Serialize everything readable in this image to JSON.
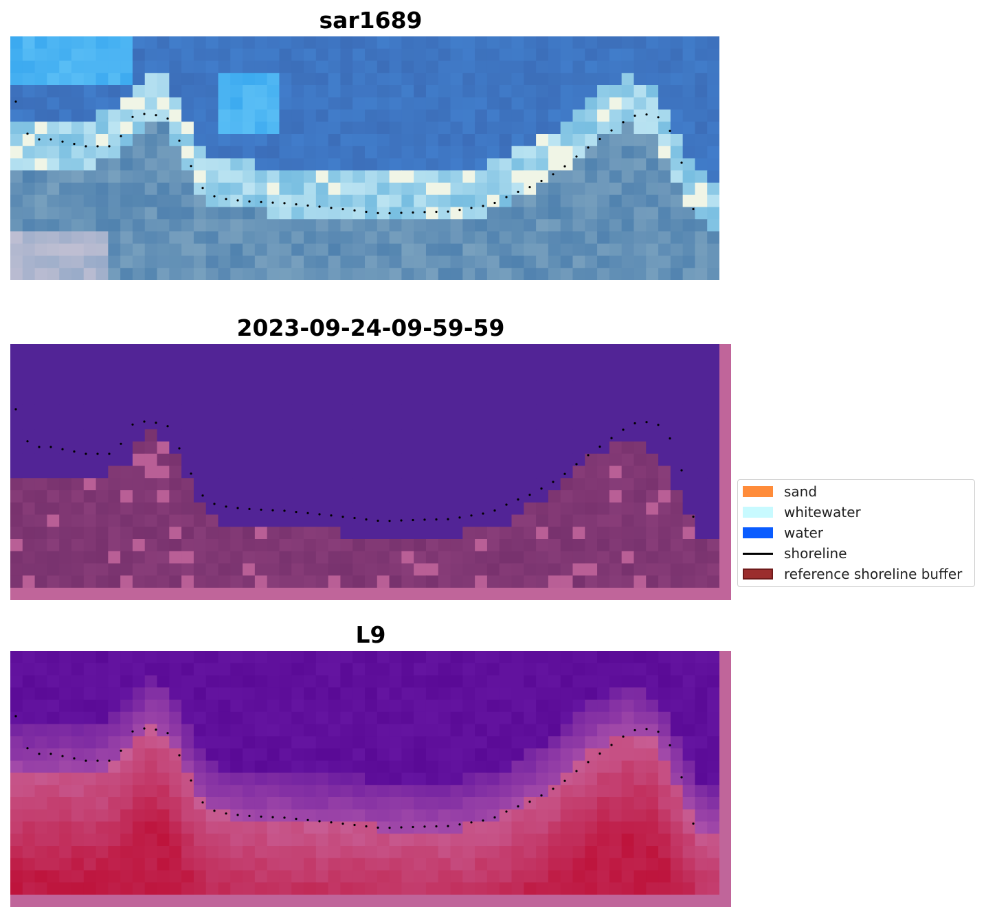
{
  "panels": [
    {
      "title": "sar1689",
      "kind": "rgb"
    },
    {
      "title": "2023-09-24-09-59-59",
      "kind": "classification"
    },
    {
      "title": "L9",
      "kind": "index"
    }
  ],
  "legend": {
    "items": [
      {
        "label": "sand",
        "color": "#ff8c3a",
        "type": "patch"
      },
      {
        "label": "whitewater",
        "color": "#c8faff",
        "type": "patch"
      },
      {
        "label": "water",
        "color": "#0a5cff",
        "type": "patch"
      },
      {
        "label": "shoreline",
        "color": "#000000",
        "type": "line"
      },
      {
        "label": "reference shoreline buffer",
        "color": "#9b2d2d",
        "type": "patch"
      }
    ]
  }
}
